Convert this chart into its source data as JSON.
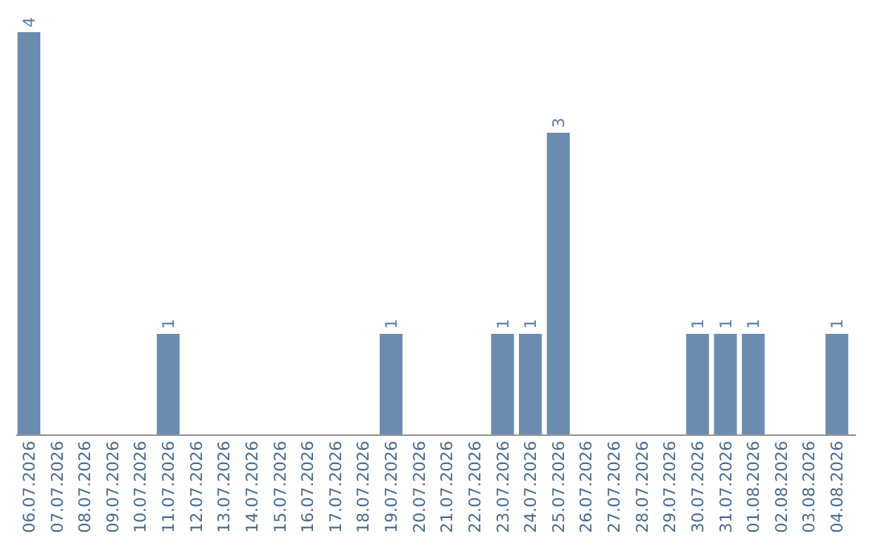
{
  "chart_data": {
    "type": "bar",
    "categories": [
      "06.07.2026",
      "07.07.2026",
      "08.07.2026",
      "09.07.2026",
      "10.07.2026",
      "11.07.2026",
      "12.07.2026",
      "13.07.2026",
      "14.07.2026",
      "15.07.2026",
      "16.07.2026",
      "17.07.2026",
      "18.07.2026",
      "19.07.2026",
      "20.07.2026",
      "21.07.2026",
      "22.07.2026",
      "23.07.2026",
      "24.07.2026",
      "25.07.2026",
      "26.07.2026",
      "27.07.2026",
      "28.07.2026",
      "29.07.2026",
      "30.07.2026",
      "31.07.2026",
      "01.08.2026",
      "02.08.2026",
      "03.08.2026",
      "04.08.2026"
    ],
    "values": [
      4,
      0,
      0,
      0,
      0,
      1,
      0,
      0,
      0,
      0,
      0,
      0,
      0,
      1,
      0,
      0,
      0,
      1,
      1,
      3,
      0,
      0,
      0,
      0,
      1,
      1,
      1,
      0,
      0,
      1
    ],
    "value_labels": [
      "4",
      null,
      null,
      null,
      null,
      "1",
      null,
      null,
      null,
      null,
      null,
      null,
      null,
      "1",
      null,
      null,
      null,
      "1",
      "1",
      "3",
      null,
      null,
      null,
      null,
      "1",
      "1",
      "1",
      null,
      null,
      "1"
    ],
    "color": "#6b8cae"
  }
}
